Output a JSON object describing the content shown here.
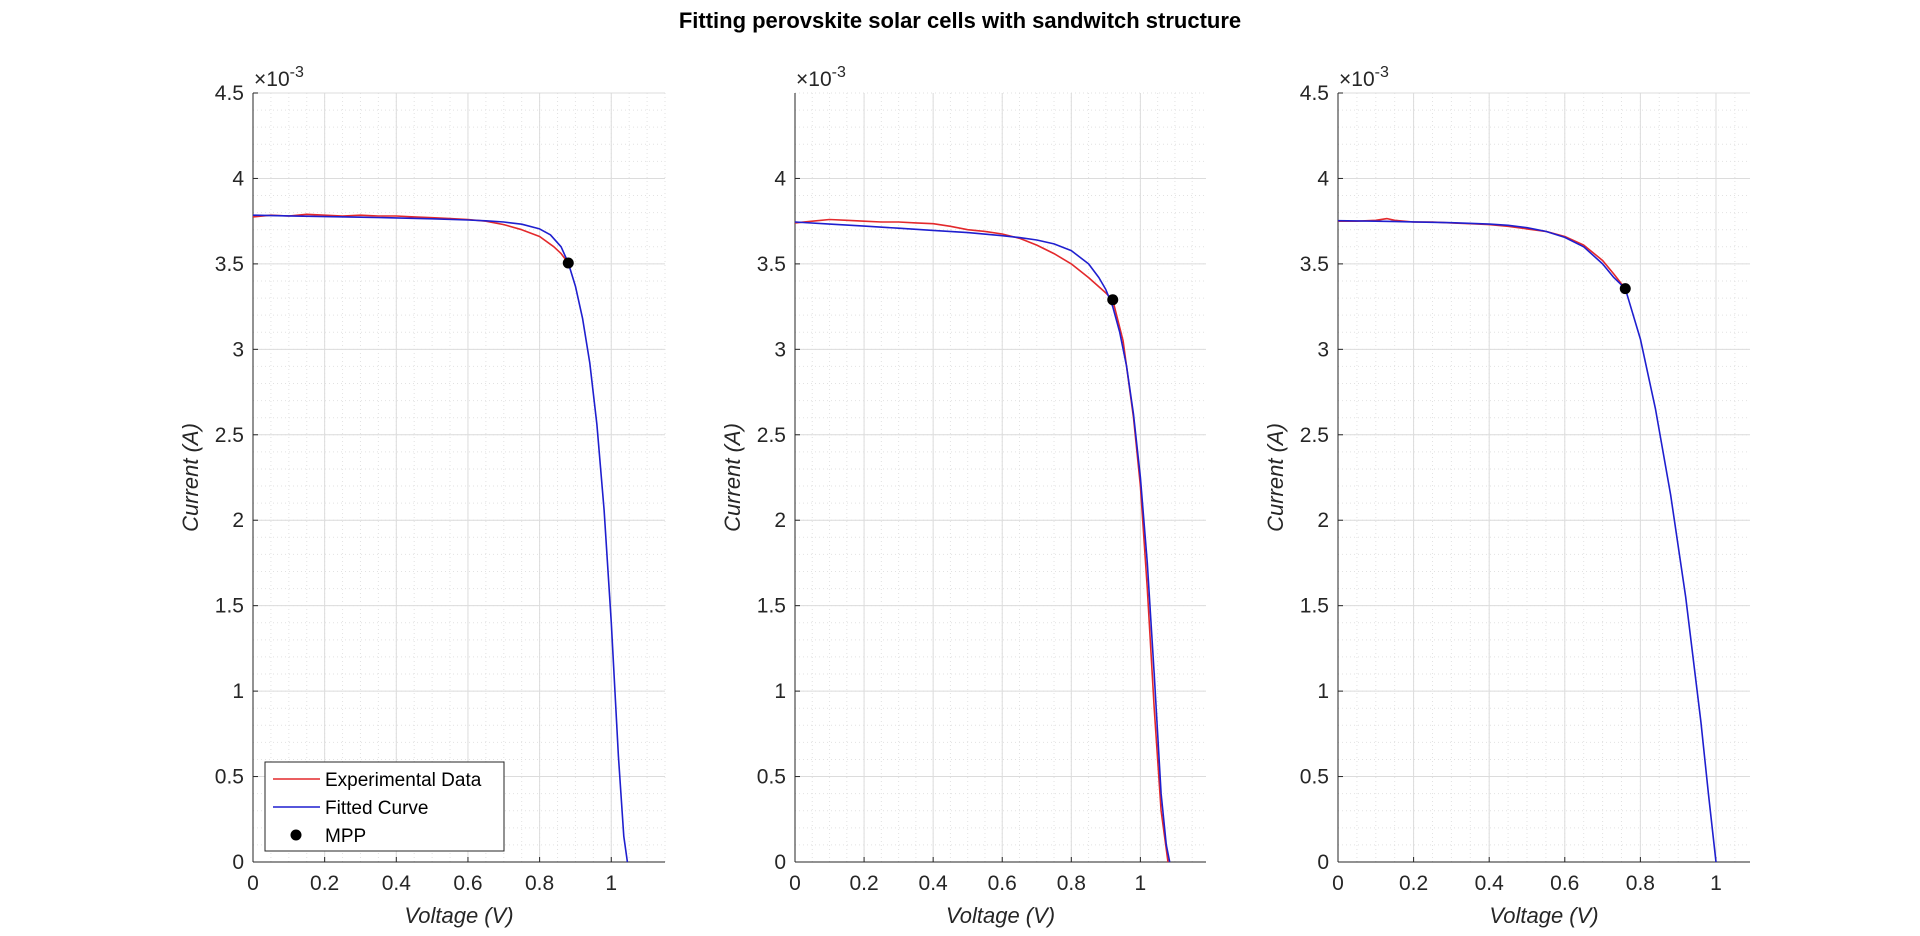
{
  "figure": {
    "title": "Fitting perovskite solar cells with sandwitch structure"
  },
  "legend": {
    "entries": [
      {
        "label": "Experimental Data",
        "color": "#e3292c",
        "kind": "line"
      },
      {
        "label": "Fitted Curve",
        "color": "#1f1fcf",
        "kind": "line"
      },
      {
        "label": "MPP",
        "color": "#000000",
        "kind": "marker"
      }
    ]
  },
  "chart_data": [
    {
      "type": "line",
      "xlabel": "Voltage (V)",
      "ylabel": "Current (A)",
      "y_exponent_label": "×10",
      "y_exponent_power": "-3",
      "xlim": [
        0,
        1.15
      ],
      "ylim": [
        0,
        0.0045
      ],
      "xticks": [
        0,
        0.2,
        0.4,
        0.6,
        0.8,
        1
      ],
      "xticklabels": [
        "0",
        "0.2",
        "0.4",
        "0.6",
        "0.8",
        "1"
      ],
      "yticks": [
        0,
        0.0005,
        0.001,
        0.0015,
        0.002,
        0.0025,
        0.003,
        0.0035,
        0.004,
        0.0045
      ],
      "yticklabels": [
        "0",
        "0.5",
        "1",
        "1.5",
        "2",
        "2.5",
        "3",
        "3.5",
        "4",
        "4.5"
      ],
      "grid": true,
      "minor_grid": true,
      "legend_location": "bottom-left",
      "series": [
        {
          "name": "Experimental Data",
          "color": "#e3292c",
          "x": [
            0,
            0.05,
            0.1,
            0.15,
            0.2,
            0.25,
            0.3,
            0.35,
            0.4,
            0.45,
            0.5,
            0.55,
            0.6,
            0.65,
            0.7,
            0.75,
            0.8,
            0.84,
            0.86,
            0.88
          ],
          "y": [
            0.003775,
            0.003785,
            0.00378,
            0.00379,
            0.003785,
            0.00378,
            0.003785,
            0.00378,
            0.00378,
            0.003775,
            0.00377,
            0.003765,
            0.00376,
            0.00375,
            0.00373,
            0.0037,
            0.00366,
            0.0036,
            0.00356,
            0.003505
          ]
        },
        {
          "name": "Fitted Curve",
          "color": "#1f1fcf",
          "x": [
            0,
            0.1,
            0.2,
            0.3,
            0.4,
            0.5,
            0.6,
            0.65,
            0.7,
            0.75,
            0.8,
            0.83,
            0.86,
            0.88,
            0.9,
            0.92,
            0.94,
            0.96,
            0.98,
            1.0,
            1.02,
            1.035,
            1.045
          ],
          "y": [
            0.003785,
            0.003781,
            0.003777,
            0.003773,
            0.003769,
            0.003764,
            0.003757,
            0.003752,
            0.003745,
            0.003732,
            0.003705,
            0.00367,
            0.0036,
            0.003505,
            0.00337,
            0.00318,
            0.00292,
            0.00256,
            0.00206,
            0.0014,
            0.00062,
            0.00015,
            0
          ]
        },
        {
          "name": "MPP",
          "color": "#000000",
          "marker": true,
          "x": [
            0.88
          ],
          "y": [
            0.003505
          ]
        }
      ]
    },
    {
      "type": "line",
      "xlabel": "Voltage (V)",
      "ylabel": "Current (A)",
      "y_exponent_label": "×10",
      "y_exponent_power": "-3",
      "xlim": [
        0,
        1.19
      ],
      "ylim": [
        0,
        0.0045
      ],
      "xticks": [
        0,
        0.2,
        0.4,
        0.6,
        0.8,
        1
      ],
      "xticklabels": [
        "0",
        "0.2",
        "0.4",
        "0.6",
        "0.8",
        "1"
      ],
      "yticks": [
        0,
        0.0005,
        0.001,
        0.0015,
        0.002,
        0.0025,
        0.003,
        0.0035,
        0.004
      ],
      "yticklabels": [
        "0",
        "0.5",
        "1",
        "1.5",
        "2",
        "2.5",
        "3",
        "3.5",
        "4"
      ],
      "grid": true,
      "minor_grid": true,
      "series": [
        {
          "name": "Experimental Data",
          "color": "#e3292c",
          "x": [
            0,
            0.05,
            0.1,
            0.15,
            0.2,
            0.25,
            0.3,
            0.35,
            0.4,
            0.45,
            0.5,
            0.55,
            0.6,
            0.65,
            0.7,
            0.75,
            0.8,
            0.85,
            0.9,
            0.92,
            0.95,
            0.98,
            1.0,
            1.02,
            1.04,
            1.06,
            1.08
          ],
          "y": [
            0.00374,
            0.00375,
            0.00376,
            0.003755,
            0.00375,
            0.003745,
            0.003745,
            0.00374,
            0.003735,
            0.00372,
            0.0037,
            0.00369,
            0.003675,
            0.00365,
            0.00361,
            0.00356,
            0.0035,
            0.00342,
            0.00333,
            0.00329,
            0.00305,
            0.0026,
            0.0022,
            0.0016,
            0.0009,
            0.0003,
            0
          ]
        },
        {
          "name": "Fitted Curve",
          "color": "#1f1fcf",
          "x": [
            0,
            0.1,
            0.2,
            0.3,
            0.4,
            0.5,
            0.6,
            0.65,
            0.7,
            0.75,
            0.8,
            0.85,
            0.88,
            0.9,
            0.92,
            0.94,
            0.96,
            0.98,
            1.0,
            1.02,
            1.04,
            1.06,
            1.075,
            1.085
          ],
          "y": [
            0.003745,
            0.003733,
            0.003721,
            0.003709,
            0.003696,
            0.003683,
            0.003665,
            0.003654,
            0.00364,
            0.003617,
            0.003578,
            0.0035,
            0.00342,
            0.00335,
            0.00325,
            0.0031,
            0.0029,
            0.00262,
            0.00225,
            0.00175,
            0.0011,
            0.0004,
            0.0001,
            0
          ]
        },
        {
          "name": "MPP",
          "color": "#000000",
          "marker": true,
          "x": [
            0.92
          ],
          "y": [
            0.00329
          ]
        }
      ]
    },
    {
      "type": "line",
      "xlabel": "Voltage (V)",
      "ylabel": "Current (A)",
      "y_exponent_label": "×10",
      "y_exponent_power": "-3",
      "xlim": [
        0,
        1.09
      ],
      "ylim": [
        0,
        0.0045
      ],
      "xticks": [
        0,
        0.2,
        0.4,
        0.6,
        0.8,
        1
      ],
      "xticklabels": [
        "0",
        "0.2",
        "0.4",
        "0.6",
        "0.8",
        "1"
      ],
      "yticks": [
        0,
        0.0005,
        0.001,
        0.0015,
        0.002,
        0.0025,
        0.003,
        0.0035,
        0.004,
        0.0045
      ],
      "yticklabels": [
        "0",
        "0.5",
        "1",
        "1.5",
        "2",
        "2.5",
        "3",
        "3.5",
        "4",
        "4.5"
      ],
      "grid": true,
      "minor_grid": true,
      "series": [
        {
          "name": "Experimental Data",
          "color": "#e3292c",
          "x": [
            0,
            0.05,
            0.1,
            0.13,
            0.15,
            0.2,
            0.25,
            0.3,
            0.35,
            0.4,
            0.45,
            0.5,
            0.55,
            0.6,
            0.65,
            0.7,
            0.73,
            0.76
          ],
          "y": [
            0.00375,
            0.00375,
            0.003755,
            0.003765,
            0.003755,
            0.003745,
            0.003745,
            0.00374,
            0.003735,
            0.00373,
            0.00372,
            0.003705,
            0.00369,
            0.00366,
            0.00361,
            0.00352,
            0.00344,
            0.003355
          ]
        },
        {
          "name": "Fitted Curve",
          "color": "#1f1fcf",
          "x": [
            0,
            0.1,
            0.2,
            0.3,
            0.4,
            0.45,
            0.5,
            0.55,
            0.6,
            0.65,
            0.7,
            0.73,
            0.76,
            0.8,
            0.84,
            0.88,
            0.92,
            0.96,
            0.98,
            1.0
          ],
          "y": [
            0.003753,
            0.00375,
            0.003746,
            0.003741,
            0.003733,
            0.003726,
            0.003712,
            0.00369,
            0.003655,
            0.0036,
            0.0035,
            0.00342,
            0.003355,
            0.00306,
            0.00265,
            0.00215,
            0.00155,
            0.00082,
            0.0004,
            0
          ]
        },
        {
          "name": "MPP",
          "color": "#000000",
          "marker": true,
          "x": [
            0.76
          ],
          "y": [
            0.003355
          ]
        }
      ]
    }
  ]
}
